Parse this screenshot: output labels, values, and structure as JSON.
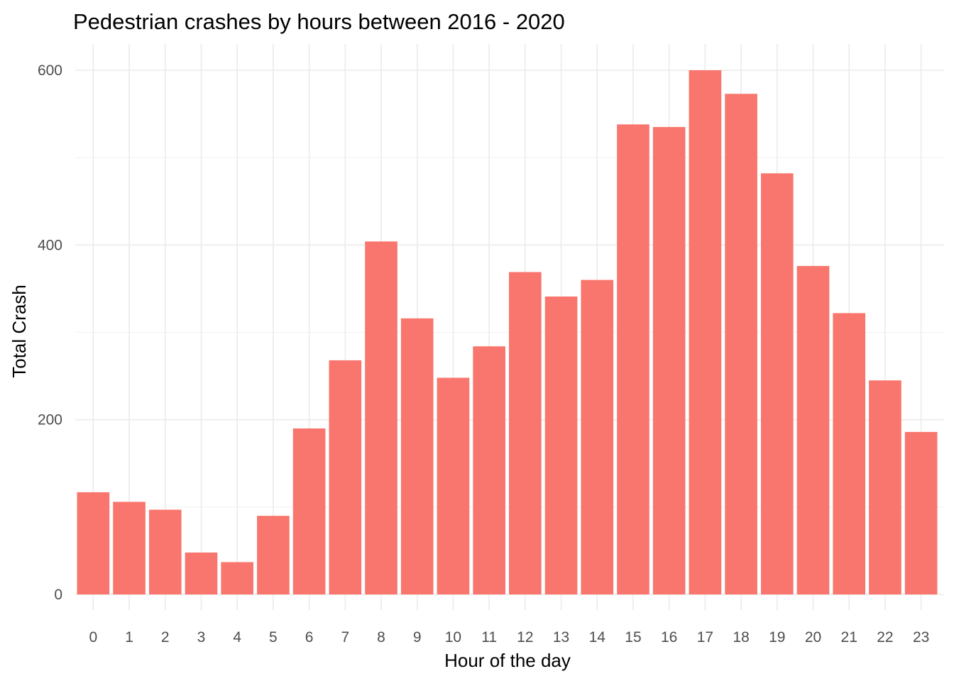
{
  "chart_data": {
    "type": "bar",
    "title": "Pedestrian crashes by hours between 2016 - 2020",
    "xlabel": "Hour of the day",
    "ylabel": "Total Crash",
    "categories": [
      "0",
      "1",
      "2",
      "3",
      "4",
      "5",
      "6",
      "7",
      "8",
      "9",
      "10",
      "11",
      "12",
      "13",
      "14",
      "15",
      "16",
      "17",
      "18",
      "19",
      "20",
      "21",
      "22",
      "23"
    ],
    "values": [
      117,
      106,
      97,
      48,
      37,
      90,
      190,
      268,
      404,
      316,
      248,
      284,
      369,
      341,
      360,
      538,
      535,
      600,
      573,
      482,
      376,
      322,
      245,
      186
    ],
    "ylim": [
      0,
      600
    ],
    "yticks": [
      0,
      200,
      400,
      600
    ],
    "bar_color": "#F8766D",
    "grid": true,
    "legend": "none"
  }
}
